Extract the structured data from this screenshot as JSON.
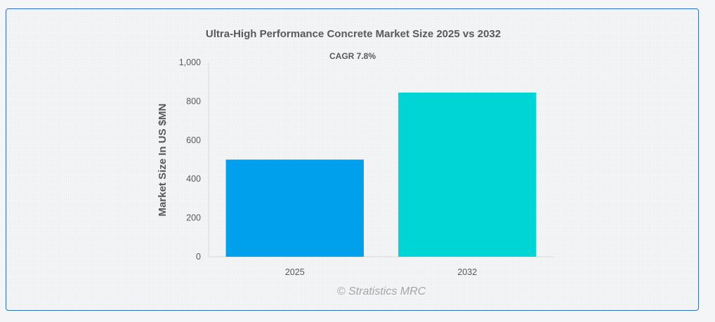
{
  "chart_data": {
    "type": "bar",
    "title": "Ultra-High Performance Concrete Market Size 2025 vs 2032",
    "subtitle": "CAGR 7.8%",
    "xlabel": "",
    "ylabel": "Market Size In US $MN",
    "categories": [
      "2025",
      "2032"
    ],
    "values": [
      500,
      845
    ],
    "ylim": [
      0,
      1000
    ],
    "yticks": [
      0,
      200,
      400,
      600,
      800,
      1000
    ],
    "ytick_labels": [
      "0",
      "200",
      "400",
      "600",
      "800",
      "1,000"
    ],
    "colors": [
      "#00a0ec",
      "#00d5d5"
    ],
    "grid": false,
    "legend": "none"
  },
  "watermark": "© Stratistics MRC"
}
